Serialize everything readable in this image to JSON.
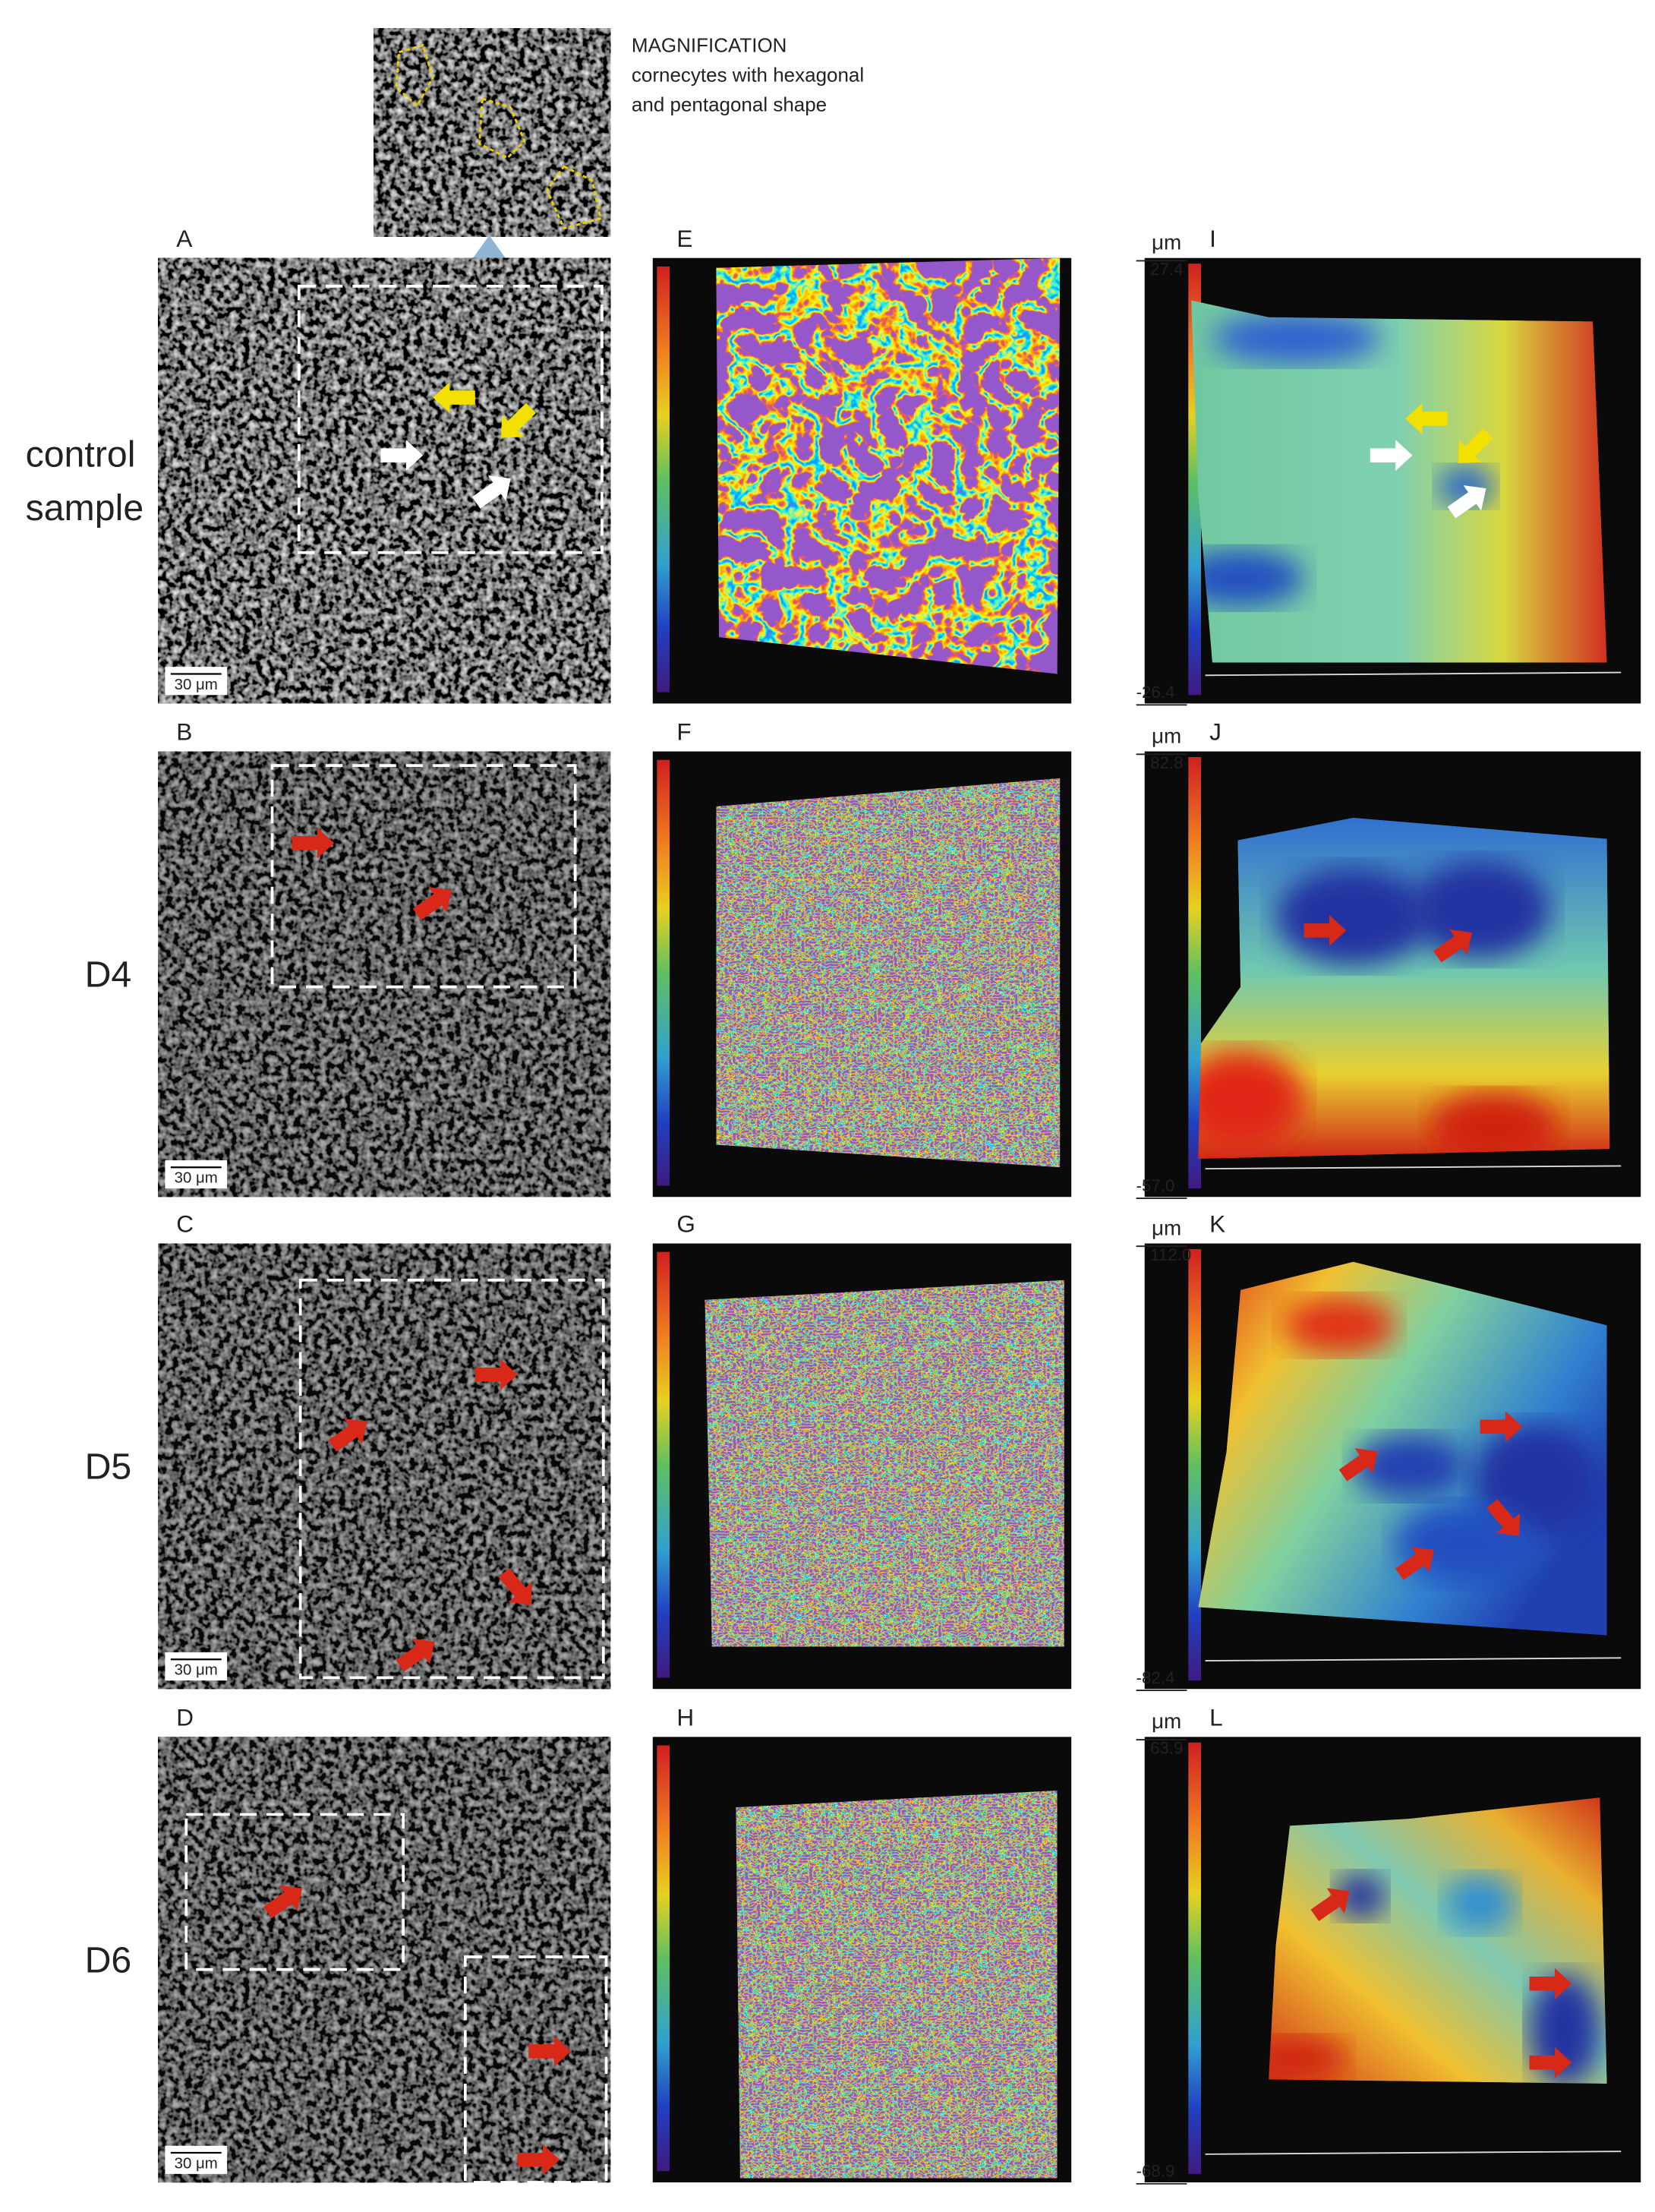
{
  "magnification": {
    "title": "MAGNIFICATION",
    "lines": [
      "cornecytes with hexagonal",
      "and pentagonal shape"
    ]
  },
  "rows": [
    {
      "label_lines": [
        "control",
        "sample"
      ],
      "panels": [
        "A",
        "E",
        "I"
      ],
      "scale_bar": "30 μm",
      "height_unit": "μm",
      "height_max": "27.4",
      "height_min": "-26.4"
    },
    {
      "label_lines": [
        "D4"
      ],
      "panels": [
        "B",
        "F",
        "J"
      ],
      "scale_bar": "30 μm",
      "height_unit": "μm",
      "height_max": "82.8",
      "height_min": "-57.0"
    },
    {
      "label_lines": [
        "D5"
      ],
      "panels": [
        "C",
        "G",
        "K"
      ],
      "scale_bar": "30 μm",
      "height_unit": "μm",
      "height_max": "112.0",
      "height_min": "-82.4"
    },
    {
      "label_lines": [
        "D6"
      ],
      "panels": [
        "D",
        "H",
        "L"
      ],
      "scale_bar": "30 μm",
      "height_unit": "μm",
      "height_max": "63.9",
      "height_min": "-68.9"
    }
  ]
}
